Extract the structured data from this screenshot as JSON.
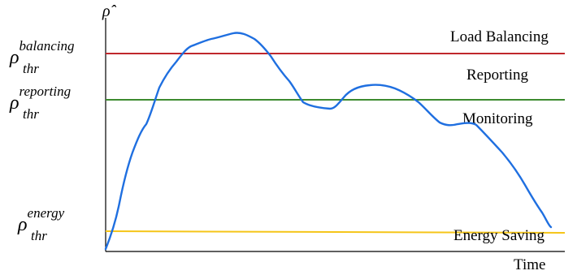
{
  "y_axis_label": "ρ̂",
  "x_axis_label": "Time",
  "thresholds": [
    {
      "symbol": "ρ",
      "superscript": "balancing",
      "subscript": "thr",
      "color": "#c0282c"
    },
    {
      "symbol": "ρ",
      "superscript": "reporting",
      "subscript": "thr",
      "color": "#3d8b2f"
    },
    {
      "symbol": "ρ",
      "superscript": "energy",
      "subscript": "thr",
      "color": "#f5c518"
    }
  ],
  "regions": [
    "Load Balancing",
    "Reporting",
    "Monitoring",
    "Energy Saving"
  ],
  "curve_color": "#1f6fe0"
}
